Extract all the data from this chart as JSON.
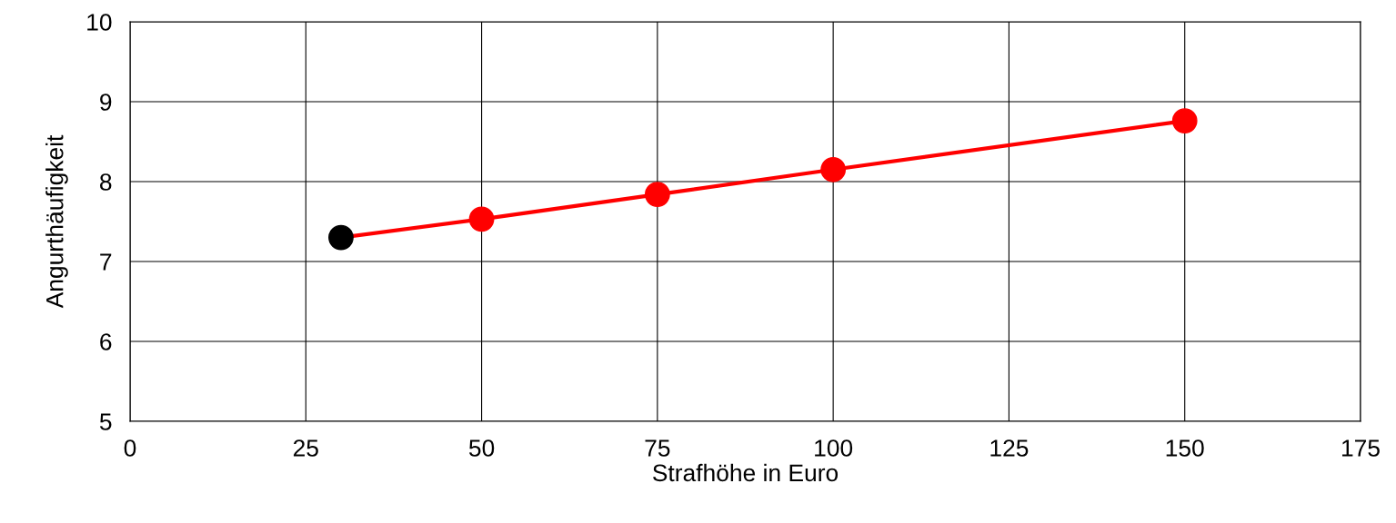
{
  "chart_data": {
    "type": "line",
    "xlabel": "Strafhöhe in Euro",
    "ylabel": "Angurthäufigkeit",
    "x": [
      30,
      50,
      75,
      100,
      150
    ],
    "series": [
      {
        "color": "#ff0000",
        "colors": [
          "#000000",
          "#ff0000",
          "#ff0000",
          "#ff0000",
          "#ff0000"
        ],
        "values": [
          7.3,
          7.53,
          7.84,
          8.15,
          8.76
        ]
      }
    ],
    "xlim": [
      0,
      175
    ],
    "xticks": [
      0,
      25,
      50,
      75,
      100,
      125,
      150,
      175
    ],
    "ylim": [
      5,
      10
    ],
    "yticks": [
      5,
      6,
      7,
      8,
      9,
      10
    ],
    "grid": true,
    "marker": "circle",
    "line_style": "solid"
  }
}
